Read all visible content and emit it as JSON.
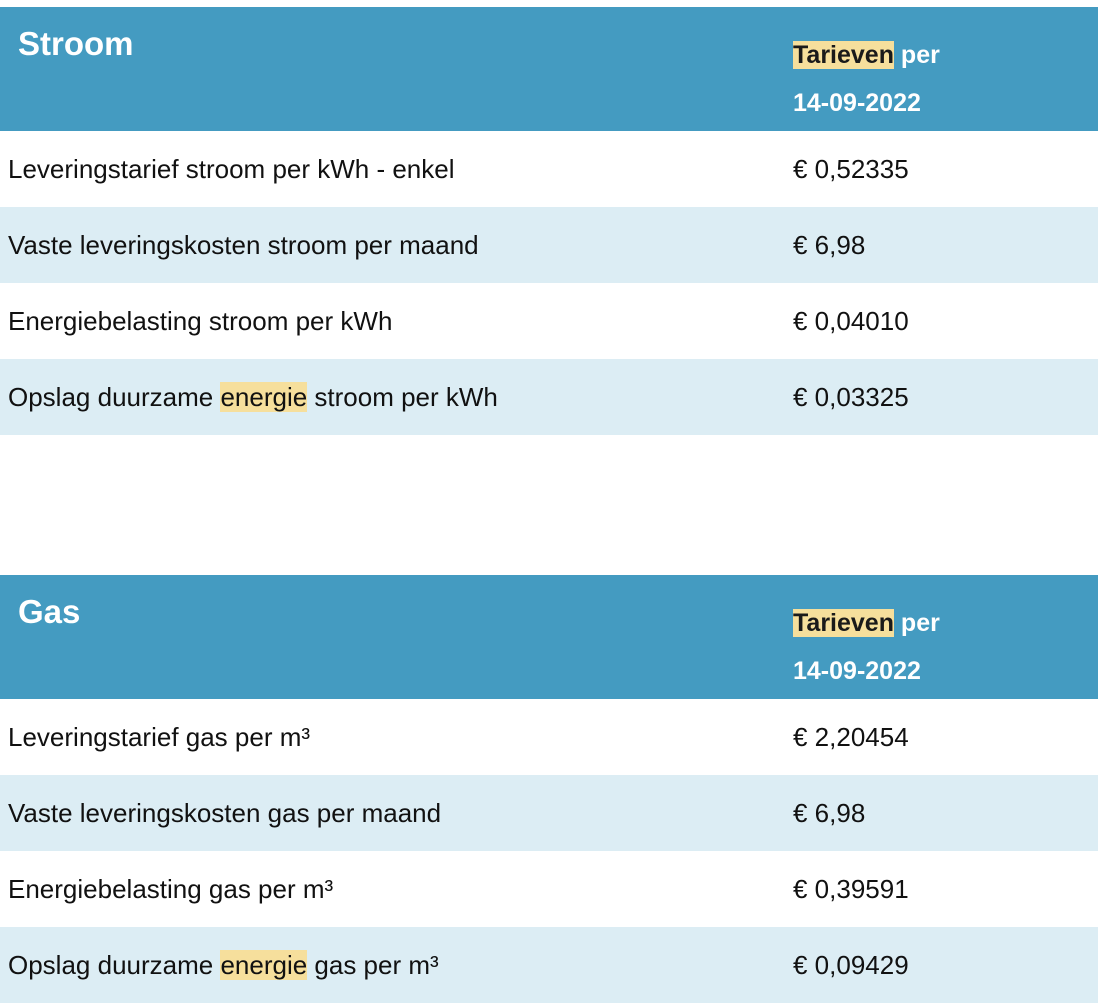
{
  "stroom": {
    "title": "Stroom",
    "date_highlight": "Tarieven",
    "date_suffix": " per",
    "date": "14-09-2022",
    "rows": [
      {
        "label_pre": "Leveringstarief stroom per kWh - enkel",
        "label_hl": "",
        "label_post": "",
        "price": "€ 0,52335"
      },
      {
        "label_pre": "Vaste leveringskosten stroom per maand",
        "label_hl": "",
        "label_post": "",
        "price": "€ 6,98"
      },
      {
        "label_pre": "Energiebelasting stroom per kWh",
        "label_hl": "",
        "label_post": "",
        "price": "€ 0,04010"
      },
      {
        "label_pre": "Opslag duurzame ",
        "label_hl": "energie",
        "label_post": " stroom per kWh",
        "price": "€ 0,03325"
      }
    ]
  },
  "gas": {
    "title": "Gas",
    "date_highlight": "Tarieven",
    "date_suffix": " per",
    "date": "14-09-2022",
    "rows": [
      {
        "label_pre": "Leveringstarief gas per m³",
        "label_hl": "",
        "label_post": "",
        "price": "€ 2,20454"
      },
      {
        "label_pre": "Vaste leveringskosten gas per maand",
        "label_hl": "",
        "label_post": "",
        "price": "€ 6,98"
      },
      {
        "label_pre": "Energiebelasting gas per m³",
        "label_hl": "",
        "label_post": "",
        "price": "€ 0,39591"
      },
      {
        "label_pre": "Opslag duurzame ",
        "label_hl": "energie",
        "label_post": " gas per m³",
        "price": "€ 0,09429"
      }
    ]
  },
  "colors": {
    "header_bg": "#449bc1",
    "alt_row_bg": "#dcedf4",
    "highlight": "#f6df9c"
  }
}
